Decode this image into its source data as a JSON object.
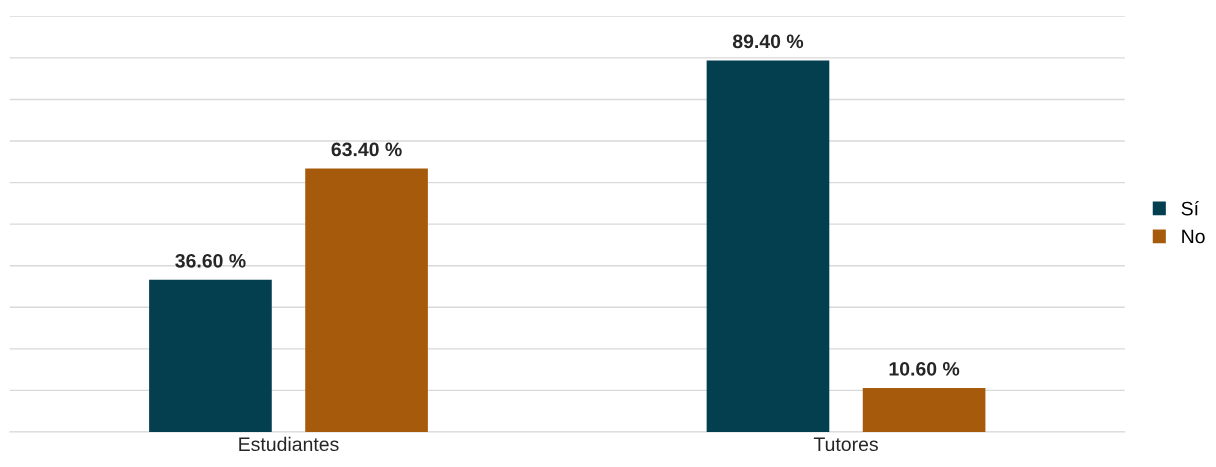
{
  "chart_data": {
    "type": "bar",
    "categories": [
      "Estudiantes",
      "Tutores"
    ],
    "series": [
      {
        "name": "Sí",
        "color": "#033f4f",
        "values": [
          36.6,
          89.4
        ],
        "value_labels": [
          "36.60 %",
          "89.40 %"
        ]
      },
      {
        "name": "No",
        "color": "#a65b0c",
        "values": [
          63.4,
          10.6
        ],
        "value_labels": [
          "63.40 %",
          "10.60 %"
        ]
      }
    ],
    "ylim": [
      0,
      100
    ],
    "yticks": [
      {
        "value": 0,
        "label": null
      },
      {
        "value": 10,
        "label": null
      },
      {
        "value": 20,
        "label": null
      },
      {
        "value": 30,
        "label": null
      },
      {
        "value": 40,
        "label": null
      },
      {
        "value": 50,
        "label": null
      },
      {
        "value": 60,
        "label": null
      },
      {
        "value": 70,
        "label": null
      },
      {
        "value": 80,
        "label": null
      },
      {
        "value": 90,
        "label": null
      },
      {
        "value": 100,
        "label": null
      }
    ],
    "grid": "y",
    "legend": "right",
    "tick_labels": "x"
  }
}
